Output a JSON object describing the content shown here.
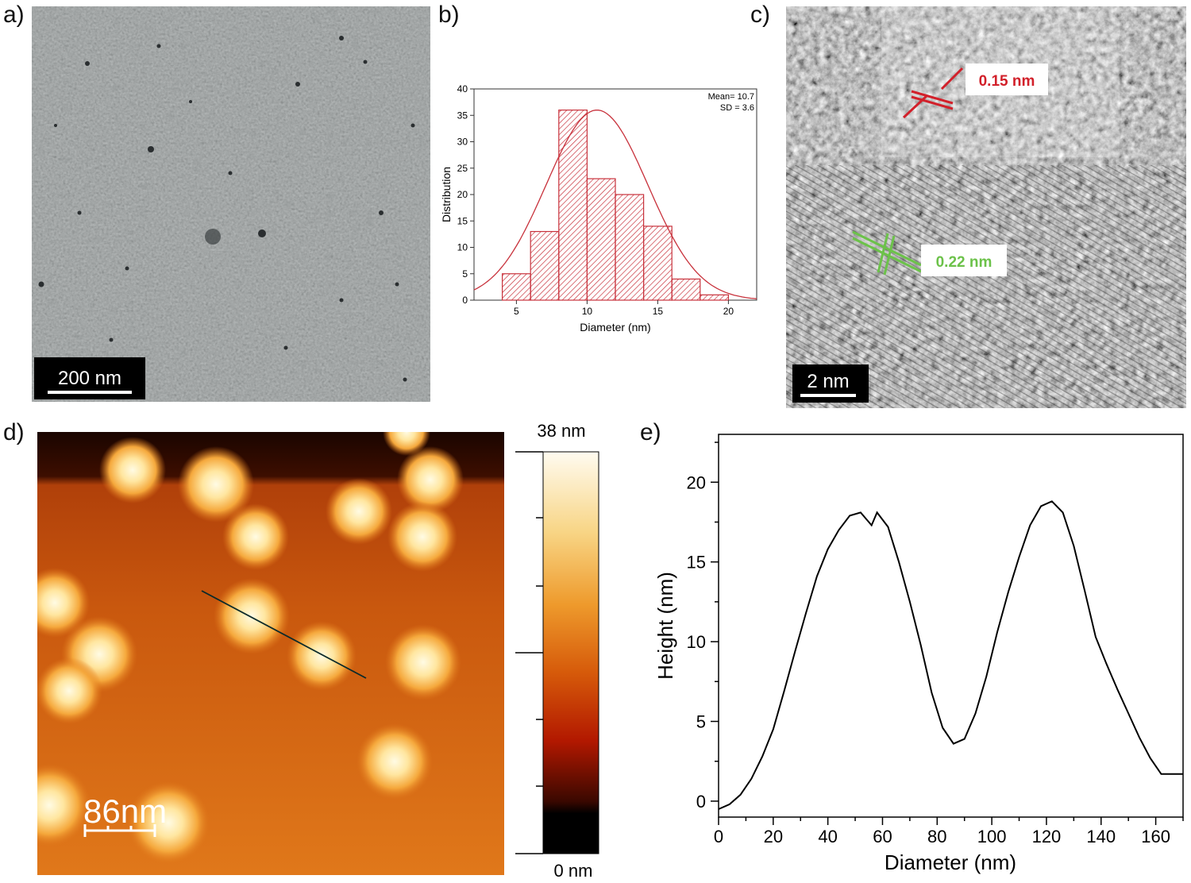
{
  "labels": {
    "a": "a)",
    "b": "b)",
    "c": "c)",
    "d": "d)",
    "e": "e)"
  },
  "panel_a": {
    "scalebar": "200 nm"
  },
  "panel_c": {
    "scalebar": "2 nm",
    "spacing_red": "0.15 nm",
    "spacing_green": "0.22 nm",
    "colors": {
      "red": "#d2202a",
      "green": "#6cc24a"
    }
  },
  "panel_d": {
    "scalebar": "86nm",
    "colorbar_max": "38 nm",
    "colorbar_min": "0 nm"
  },
  "chart_data": [
    {
      "panel": "b",
      "type": "bar",
      "bin_edges": [
        4,
        6,
        8,
        10,
        12,
        14,
        16,
        18,
        20
      ],
      "values": [
        5,
        13,
        36,
        23,
        20,
        14,
        4,
        1
      ],
      "xlabel": "Diameter (nm)",
      "ylabel": "Distribution",
      "xlim": [
        2,
        22
      ],
      "ylim": [
        0,
        40
      ],
      "xticks": [
        5,
        10,
        15,
        20
      ],
      "yticks": [
        0,
        5,
        10,
        15,
        20,
        25,
        30,
        35,
        40
      ],
      "fit": {
        "type": "gaussian",
        "mean": 10.7,
        "sd": 3.6,
        "peak": 36
      },
      "annotation": {
        "mean_label": "Mean= 10.7",
        "sd_label": "SD   = 3.6"
      },
      "color": "#c8323c"
    },
    {
      "panel": "e",
      "type": "line",
      "x": [
        0,
        4,
        8,
        12,
        16,
        20,
        24,
        28,
        32,
        36,
        40,
        44,
        48,
        52,
        56,
        58,
        62,
        66,
        70,
        74,
        78,
        82,
        86,
        90,
        94,
        98,
        102,
        106,
        110,
        114,
        118,
        122,
        126,
        130,
        134,
        138,
        142,
        146,
        150,
        154,
        158,
        162,
        166,
        170
      ],
      "y": [
        -0.5,
        -0.2,
        0.4,
        1.4,
        2.8,
        4.5,
        6.9,
        9.4,
        11.8,
        14.1,
        15.8,
        17.0,
        17.9,
        18.1,
        17.3,
        18.1,
        17.2,
        15.0,
        12.5,
        9.8,
        6.8,
        4.6,
        3.6,
        3.9,
        5.5,
        7.8,
        10.6,
        13.1,
        15.3,
        17.3,
        18.5,
        18.8,
        18.1,
        16.0,
        13.2,
        10.3,
        8.6,
        7.0,
        5.5,
        4.0,
        2.7,
        1.7,
        1.7,
        1.7
      ],
      "xlabel": "Diameter (nm)",
      "ylabel": "Height (nm)",
      "xlim": [
        0,
        170
      ],
      "ylim": [
        -1,
        23
      ],
      "xticks": [
        0,
        20,
        40,
        60,
        80,
        100,
        120,
        140,
        160
      ],
      "yticks": [
        0,
        5,
        10,
        15,
        20
      ]
    }
  ]
}
